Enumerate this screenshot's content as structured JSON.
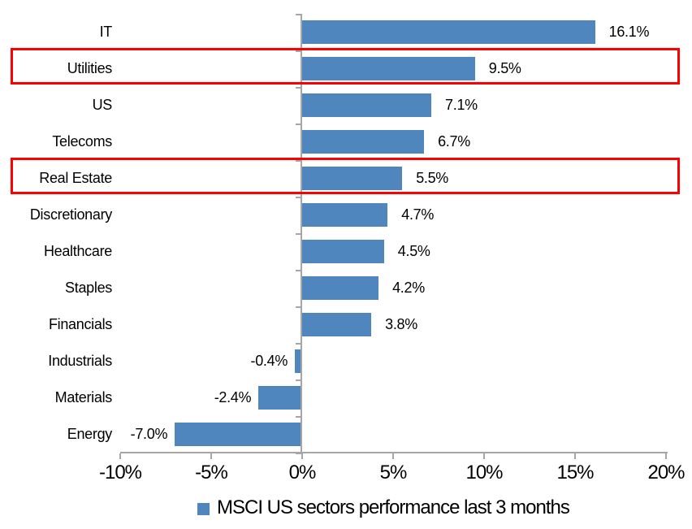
{
  "chart_data": {
    "type": "bar",
    "orientation": "horizontal",
    "title": "",
    "categories": [
      "IT",
      "Utilities",
      "US",
      "Telecoms",
      "Real Estate",
      "Discretionary",
      "Healthcare",
      "Staples",
      "Financials",
      "Industrials",
      "Materials",
      "Energy"
    ],
    "values": [
      16.1,
      9.5,
      7.1,
      6.7,
      5.5,
      4.7,
      4.5,
      4.2,
      3.8,
      -0.4,
      -2.4,
      -7.0
    ],
    "value_labels": [
      "16.1%",
      "9.5%",
      "7.1%",
      "6.7%",
      "5.5%",
      "4.7%",
      "4.5%",
      "4.2%",
      "3.8%",
      "-0.4%",
      "-2.4%",
      "-7.0%"
    ],
    "xlabel": "",
    "ylabel": "",
    "xlim": [
      -10,
      20
    ],
    "x_ticks": [
      "-10%",
      "-5%",
      "0%",
      "5%",
      "10%",
      "15%",
      "20%"
    ],
    "x_tick_values": [
      -10,
      -5,
      0,
      5,
      10,
      15,
      20
    ],
    "grid": false,
    "legend": [
      "MSCI US sectors performance last 3 months"
    ],
    "legend_position": "bottom",
    "bar_color": "#4f86bd",
    "axis_color": "#a6a6a6",
    "label_color": "#000000",
    "highlight_color": "#fe0000",
    "highlighted_categories": [
      "Utilities",
      "Real Estate"
    ]
  }
}
